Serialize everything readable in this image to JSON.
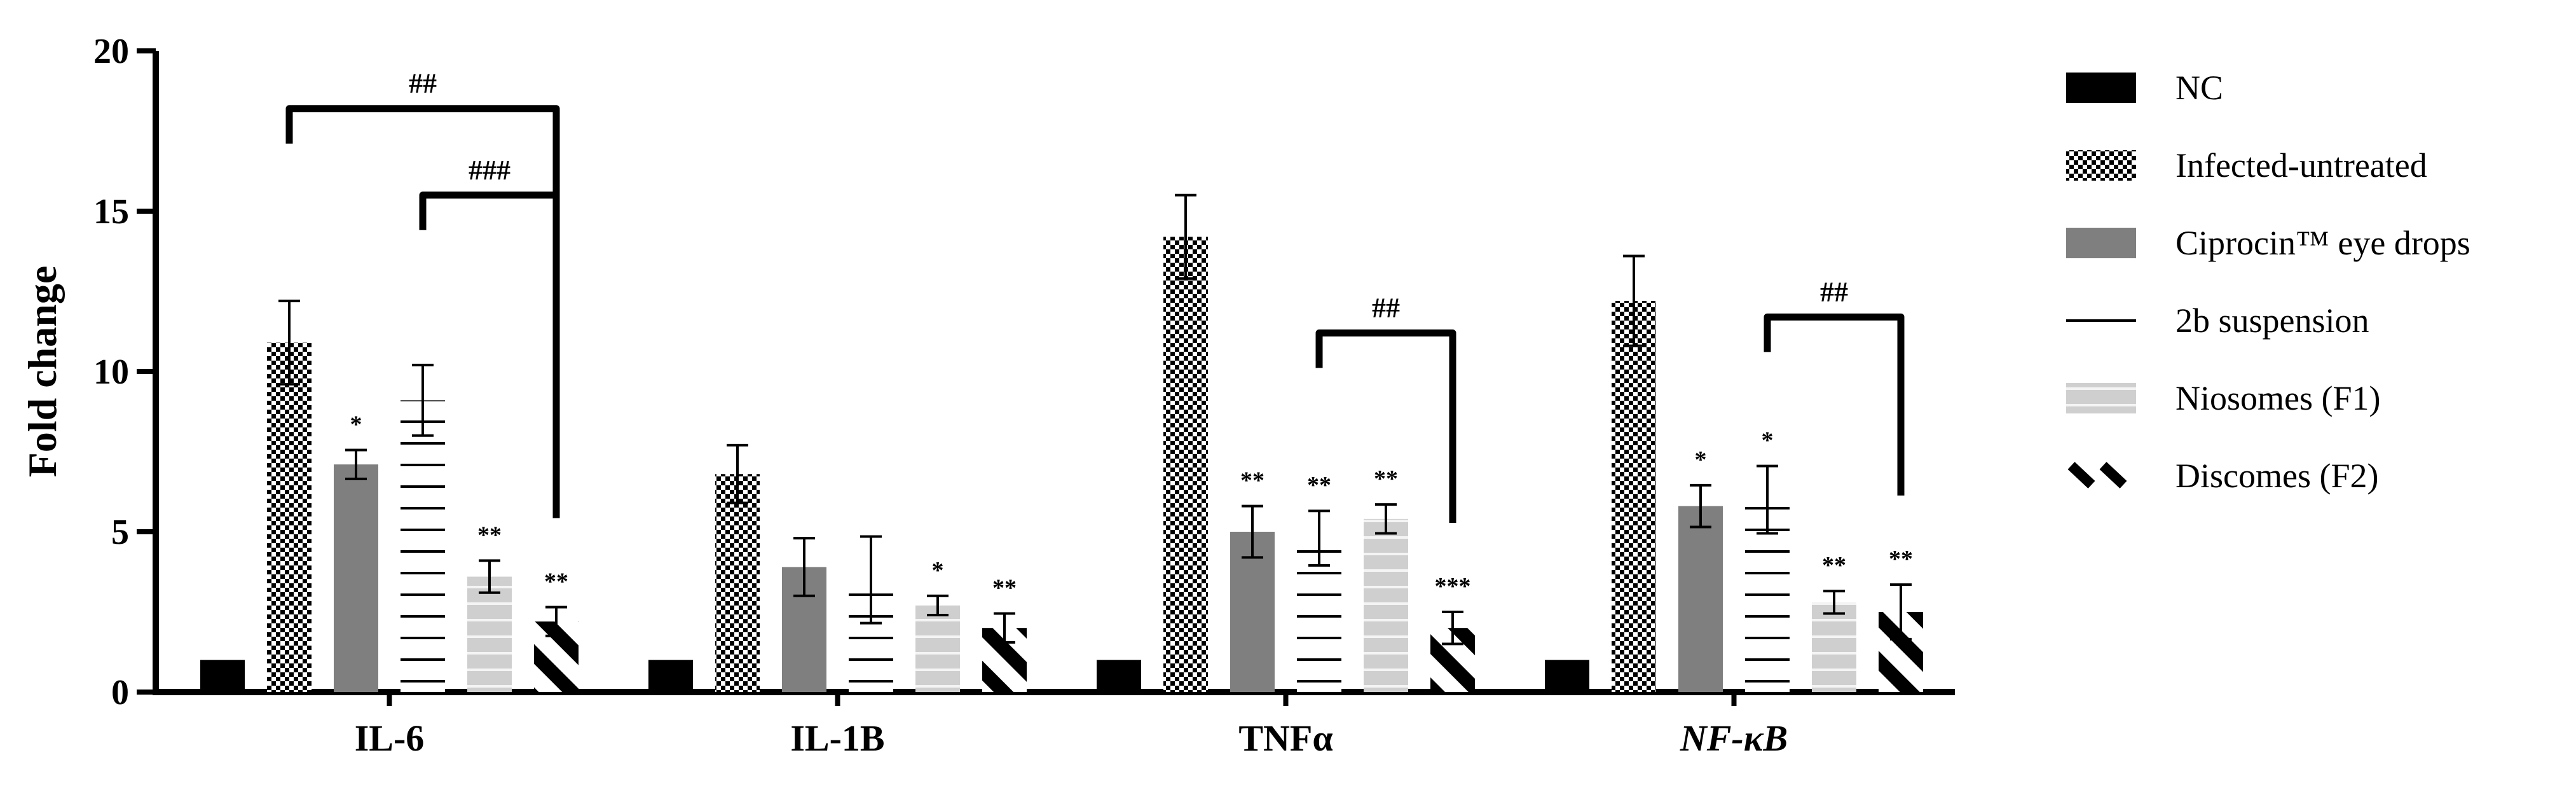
{
  "chart_data": {
    "type": "bar",
    "title": "",
    "xlabel": "",
    "ylabel": "Fold change",
    "ylim": [
      0,
      20
    ],
    "yticks": [
      "0",
      "5",
      "10",
      "15",
      "20"
    ],
    "categories": [
      "IL-6",
      "IL-1B",
      "TNFα",
      "NF-κB"
    ],
    "grid": false,
    "legend_position": "right",
    "series": [
      {
        "name": "NC",
        "pattern": "solid-black",
        "color": "#000000",
        "values": [
          1,
          1,
          1,
          1
        ],
        "errors": [
          0,
          0,
          0,
          0
        ],
        "sig": [
          "",
          "",
          "",
          ""
        ]
      },
      {
        "name": "Infected-untreated",
        "pattern": "checker",
        "color": "#000000",
        "values": [
          10.9,
          6.8,
          14.2,
          12.2
        ],
        "errors": [
          1.3,
          0.9,
          1.3,
          1.4
        ],
        "sig": [
          "",
          "",
          "",
          ""
        ]
      },
      {
        "name": "Ciprocin™ eye drops",
        "pattern": "solid-gray",
        "color": "#7f7f7f",
        "values": [
          7.1,
          3.9,
          5.0,
          5.8
        ],
        "errors": [
          0.45,
          0.9,
          0.8,
          0.65
        ],
        "sig": [
          "*",
          "",
          "**",
          "*"
        ]
      },
      {
        "name": "2b suspension",
        "pattern": "horizontal-lines",
        "color": "#000000",
        "values": [
          9.1,
          3.5,
          4.8,
          6.0
        ],
        "errors": [
          1.1,
          1.35,
          0.85,
          1.05
        ],
        "sig": [
          "",
          "",
          "**",
          "*"
        ]
      },
      {
        "name": "Niosomes (F1)",
        "pattern": "light-gray-lines",
        "color": "#c8c8c8",
        "values": [
          3.6,
          2.7,
          5.4,
          2.8
        ],
        "errors": [
          0.5,
          0.3,
          0.45,
          0.35
        ],
        "sig": [
          "**",
          "*",
          "**",
          "**"
        ]
      },
      {
        "name": "Discomes (F2)",
        "pattern": "diagonal-stripes",
        "color": "#000000",
        "values": [
          2.2,
          2.0,
          2.0,
          2.5
        ],
        "errors": [
          0.45,
          0.45,
          0.5,
          0.85
        ],
        "sig": [
          "**",
          "**",
          "***",
          "**"
        ]
      }
    ],
    "comparisons": [
      {
        "category": 0,
        "from": 1,
        "to": 5,
        "y": 18.2,
        "label": "##"
      },
      {
        "category": 0,
        "from": 3,
        "to": 5,
        "y": 15.5,
        "label": "###"
      },
      {
        "category": 2,
        "from": 3,
        "to": 5,
        "y": 11.2,
        "label": "##"
      },
      {
        "category": 3,
        "from": 3,
        "to": 5,
        "y": 11.7,
        "label": "##"
      }
    ]
  }
}
